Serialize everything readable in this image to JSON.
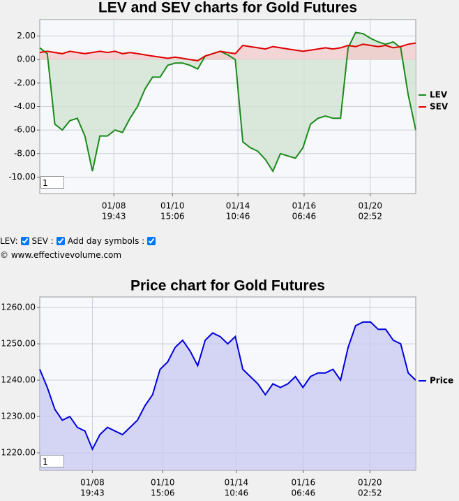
{
  "chart_data": [
    {
      "type": "area",
      "title": "LEV and SEV charts for Gold Futures",
      "x": [
        0,
        2,
        4,
        6,
        8,
        10,
        12,
        14,
        16,
        18,
        20,
        22,
        24,
        26,
        28,
        30,
        32,
        34,
        36,
        38,
        40,
        42,
        44,
        46,
        48,
        50,
        52,
        54,
        56,
        58,
        60,
        62,
        64,
        66,
        68,
        70,
        72,
        74,
        76,
        78,
        80,
        82,
        84,
        86,
        88,
        90,
        92,
        94,
        96,
        98,
        100
      ],
      "xlim": [
        0,
        100
      ],
      "xticks": [
        {
          "value": 19.7,
          "label": [
            "01/08",
            "19:43"
          ]
        },
        {
          "value": 35.3,
          "label": [
            "01/10",
            "15:06"
          ]
        },
        {
          "value": 52.7,
          "label": [
            "01/14",
            "10:46"
          ]
        },
        {
          "value": 70.3,
          "label": [
            "01/16",
            "06:46"
          ]
        },
        {
          "value": 87.9,
          "label": [
            "01/20",
            "02:52"
          ]
        }
      ],
      "ylim": [
        -11.4,
        3.4
      ],
      "yticks": [
        {
          "value": 2,
          "label": "2.00"
        },
        {
          "value": 0,
          "label": "0.00"
        },
        {
          "value": -2,
          "label": "-2.00"
        },
        {
          "value": -4,
          "label": "-4.00"
        },
        {
          "value": -6,
          "label": "-6.00"
        },
        {
          "value": -8,
          "label": "-8.00"
        },
        {
          "value": -10,
          "label": "-10.00"
        }
      ],
      "grid": true,
      "series": [
        {
          "name": "LEV",
          "color": "#1a8a1a",
          "fill": "#cfe3cf",
          "values": [
            1.0,
            0.5,
            -5.5,
            -6.0,
            -5.2,
            -5.0,
            -6.5,
            -9.5,
            -6.5,
            -6.5,
            -6.0,
            -6.2,
            -5.0,
            -4.0,
            -2.5,
            -1.5,
            -1.5,
            -0.5,
            -0.3,
            -0.3,
            -0.5,
            -0.8,
            0.3,
            0.5,
            0.7,
            0.4,
            0.0,
            -7.0,
            -7.5,
            -7.8,
            -8.5,
            -9.5,
            -8.0,
            -8.2,
            -8.4,
            -7.5,
            -5.5,
            -5.0,
            -4.8,
            -5.0,
            -5.0,
            1.0,
            2.3,
            2.2,
            1.8,
            1.5,
            1.3,
            1.5,
            1.0,
            -3.0,
            -6.0
          ]
        },
        {
          "name": "SEV",
          "color": "#e00000",
          "fill": "#f2c9c9",
          "values": [
            0.6,
            0.7,
            0.6,
            0.5,
            0.7,
            0.6,
            0.5,
            0.6,
            0.7,
            0.6,
            0.7,
            0.5,
            0.6,
            0.5,
            0.4,
            0.3,
            0.2,
            0.1,
            0.2,
            0.1,
            0.0,
            -0.1,
            0.3,
            0.5,
            0.7,
            0.6,
            0.5,
            1.2,
            1.1,
            1.0,
            0.9,
            1.1,
            1.0,
            0.9,
            0.8,
            0.7,
            0.8,
            0.9,
            1.0,
            0.9,
            1.0,
            1.2,
            1.1,
            1.3,
            1.2,
            1.1,
            1.2,
            1.0,
            1.1,
            1.3,
            1.4
          ]
        }
      ]
    },
    {
      "type": "area",
      "title": "Price chart for Gold Futures",
      "x": [
        0,
        2,
        4,
        6,
        8,
        10,
        12,
        14,
        16,
        18,
        20,
        22,
        24,
        26,
        28,
        30,
        32,
        34,
        36,
        38,
        40,
        42,
        44,
        46,
        48,
        50,
        52,
        54,
        56,
        58,
        60,
        62,
        64,
        66,
        68,
        70,
        72,
        74,
        76,
        78,
        80,
        82,
        84,
        86,
        88,
        90,
        92,
        94,
        96,
        98,
        100
      ],
      "xlim": [
        0,
        100
      ],
      "xticks": [
        {
          "value": 14.0,
          "label": [
            "01/08",
            "19:43"
          ]
        },
        {
          "value": 32.7,
          "label": [
            "01/10",
            "15:06"
          ]
        },
        {
          "value": 52.3,
          "label": [
            "01/14",
            "10:46"
          ]
        },
        {
          "value": 70.1,
          "label": [
            "01/16",
            "06:46"
          ]
        },
        {
          "value": 87.8,
          "label": [
            "01/20",
            "02:52"
          ]
        }
      ],
      "ylim": [
        1215.2,
        1262.9
      ],
      "yticks": [
        {
          "value": 1260,
          "label": "1260.00"
        },
        {
          "value": 1250,
          "label": "1250.00"
        },
        {
          "value": 1240,
          "label": "1240.00"
        },
        {
          "value": 1230,
          "label": "1230.00"
        },
        {
          "value": 1220,
          "label": "1220.00"
        }
      ],
      "grid": true,
      "series": [
        {
          "name": "Price",
          "color": "#0000dd",
          "fill": "#c8c8f2",
          "values": [
            1243,
            1238,
            1232,
            1229,
            1230,
            1227,
            1226,
            1221,
            1225,
            1227,
            1226,
            1225,
            1227,
            1229,
            1233,
            1236,
            1243,
            1245,
            1249,
            1251,
            1248,
            1244,
            1251,
            1253,
            1252,
            1250,
            1252,
            1243,
            1241,
            1239,
            1236,
            1239,
            1238,
            1239,
            1241,
            1238,
            1241,
            1242,
            1242,
            1243,
            1240,
            1249,
            1255,
            1256,
            1256,
            1254,
            1254,
            1251,
            1250,
            1242,
            1240
          ]
        }
      ]
    }
  ],
  "controls": {
    "lev_label": "LEV:",
    "sev_label": "SEV :",
    "day_symbols_label": "Add day symbols :",
    "zoom_top": "1",
    "zoom_bottom": "1"
  },
  "copyright": "© www.effectivevolume.com"
}
